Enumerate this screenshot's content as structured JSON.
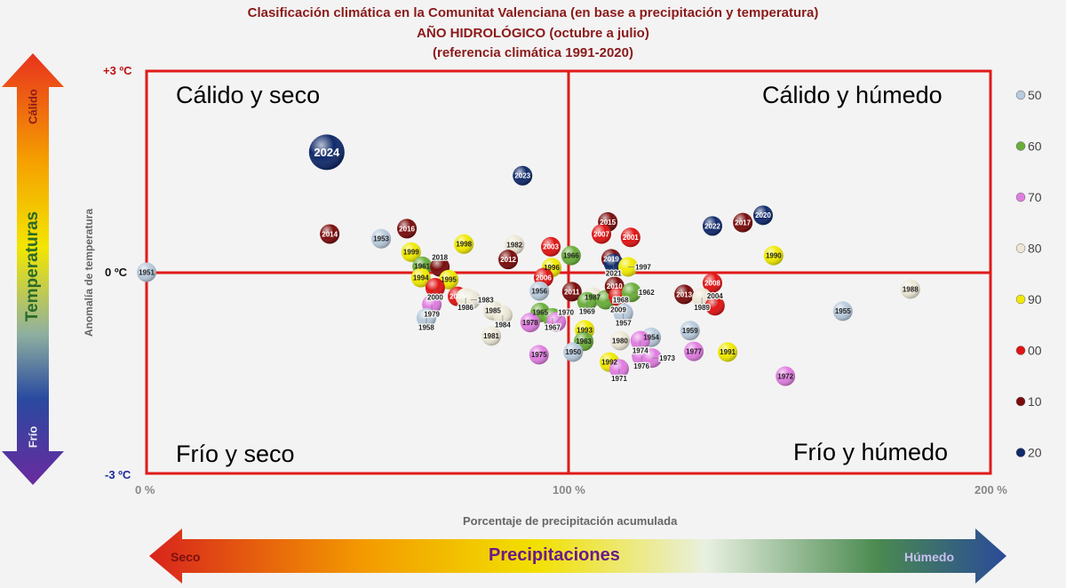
{
  "chart_data": {
    "type": "scatter",
    "title": [
      "Clasificación climática en la Comunitat Valenciana (en base a precipitación y temperatura)",
      "AÑO HIDROLÓGICO (octubre a julio)",
      "(referencia climática 1991-2020)"
    ],
    "xlabel": "Porcentaje de precipitación acumulada",
    "ylabel": "Anomalía de temperatura",
    "xlim": [
      0,
      200
    ],
    "ylim": [
      -3,
      3
    ],
    "x_ticks": [
      "0 %",
      "100 %",
      "200 %"
    ],
    "y_ticks": [
      "+3 ºC",
      "0 ºC",
      "-3 ºC"
    ],
    "quadrants": {
      "top_left": "Cálido y seco",
      "top_right": "Cálido y húmedo",
      "bottom_left": "Frío y seco",
      "bottom_right": "Frío y húmedo"
    },
    "quadrant_colors": {
      "top_left": "#d01818",
      "top_right": "#8cb21e",
      "bottom_left": "#7a1010",
      "bottom_right": "#20a98a"
    },
    "legend": [
      {
        "label": "50",
        "color": "#b8cadc"
      },
      {
        "label": "60",
        "color": "#6aae3a"
      },
      {
        "label": "70",
        "color": "#e07de0"
      },
      {
        "label": "80",
        "color": "#ece7d6"
      },
      {
        "label": "90",
        "color": "#f0ea00"
      },
      {
        "label": "00",
        "color": "#e01414"
      },
      {
        "label": "10",
        "color": "#7a0c0c"
      },
      {
        "label": "20",
        "color": "#102a6a"
      }
    ],
    "points": [
      {
        "year": "2024",
        "x": 42.7,
        "y": 1.79,
        "decade": "20",
        "highlight": true
      },
      {
        "year": "2023",
        "x": 89.1,
        "y": 1.44,
        "decade": "20"
      },
      {
        "year": "2014",
        "x": 43.4,
        "y": 0.57,
        "decade": "10"
      },
      {
        "year": "1953",
        "x": 55.6,
        "y": 0.5,
        "decade": "50"
      },
      {
        "year": "2016",
        "x": 61.7,
        "y": 0.65,
        "decade": "10"
      },
      {
        "year": "1999",
        "x": 62.7,
        "y": 0.3,
        "decade": "90"
      },
      {
        "year": "1998",
        "x": 75.2,
        "y": 0.42,
        "decade": "90"
      },
      {
        "year": "1982",
        "x": 87.2,
        "y": 0.41,
        "decade": "80"
      },
      {
        "year": "2012",
        "x": 85.7,
        "y": 0.19,
        "decade": "10"
      },
      {
        "year": "2003",
        "x": 95.8,
        "y": 0.38,
        "decade": "00"
      },
      {
        "year": "1966",
        "x": 100.6,
        "y": 0.25,
        "decade": "60"
      },
      {
        "year": "1996",
        "x": 96.0,
        "y": 0.07,
        "decade": "90"
      },
      {
        "year": "2006",
        "x": 94.1,
        "y": -0.08,
        "decade": "00"
      },
      {
        "year": "1961",
        "x": 65.3,
        "y": 0.09,
        "decade": "60"
      },
      {
        "year": "2018",
        "x": 69.5,
        "y": 0.08,
        "decade": "10"
      },
      {
        "year": "1994",
        "x": 65.0,
        "y": -0.08,
        "decade": "90"
      },
      {
        "year": "1995",
        "x": 71.6,
        "y": -0.11,
        "decade": "90"
      },
      {
        "year": "2000",
        "x": 68.4,
        "y": -0.23,
        "decade": "00"
      },
      {
        "year": "2005",
        "x": 73.7,
        "y": -0.36,
        "decade": "00"
      },
      {
        "year": "1986",
        "x": 75.6,
        "y": -0.38,
        "decade": "80"
      },
      {
        "year": "1983",
        "x": 76.8,
        "y": -0.41,
        "decade": "80"
      },
      {
        "year": "1979",
        "x": 67.6,
        "y": -0.48,
        "decade": "70"
      },
      {
        "year": "1958",
        "x": 66.3,
        "y": -0.68,
        "decade": "50"
      },
      {
        "year": "1985",
        "x": 82.1,
        "y": -0.57,
        "decade": "80"
      },
      {
        "year": "1984",
        "x": 84.4,
        "y": -0.64,
        "decade": "80"
      },
      {
        "year": "1981",
        "x": 81.7,
        "y": -0.95,
        "decade": "80"
      },
      {
        "year": "1956",
        "x": 93.1,
        "y": -0.28,
        "decade": "50"
      },
      {
        "year": "1965",
        "x": 93.3,
        "y": -0.6,
        "decade": "60"
      },
      {
        "year": "1967",
        "x": 96.2,
        "y": -0.68,
        "decade": "60"
      },
      {
        "year": "1970",
        "x": 97.1,
        "y": -0.74,
        "decade": "70"
      },
      {
        "year": "1978",
        "x": 90.9,
        "y": -0.75,
        "decade": "70"
      },
      {
        "year": "2011",
        "x": 100.8,
        "y": -0.29,
        "decade": "10"
      },
      {
        "year": "1987",
        "x": 105.7,
        "y": -0.37,
        "decade": "80"
      },
      {
        "year": "1969",
        "x": 104.4,
        "y": -0.44,
        "decade": "60"
      },
      {
        "year": "1968",
        "x": 108.8,
        "y": -0.41,
        "decade": "60"
      },
      {
        "year": "2010",
        "x": 110.9,
        "y": -0.21,
        "decade": "10"
      },
      {
        "year": "2009",
        "x": 111.8,
        "y": -0.36,
        "decade": "00"
      },
      {
        "year": "1962",
        "x": 114.9,
        "y": -0.3,
        "decade": "60"
      },
      {
        "year": "2019",
        "x": 110.1,
        "y": 0.2,
        "decade": "10"
      },
      {
        "year": "2021",
        "x": 110.7,
        "y": 0.13,
        "decade": "20"
      },
      {
        "year": "1997",
        "x": 114.1,
        "y": 0.08,
        "decade": "90"
      },
      {
        "year": "2015",
        "x": 109.3,
        "y": 0.75,
        "decade": "10"
      },
      {
        "year": "2007",
        "x": 107.8,
        "y": 0.57,
        "decade": "00"
      },
      {
        "year": "2001",
        "x": 114.7,
        "y": 0.52,
        "decade": "00"
      },
      {
        "year": "1957",
        "x": 113.0,
        "y": -0.61,
        "decade": "50"
      },
      {
        "year": "1993",
        "x": 103.8,
        "y": -0.86,
        "decade": "90"
      },
      {
        "year": "1963",
        "x": 103.6,
        "y": -1.03,
        "decade": "60"
      },
      {
        "year": "1950",
        "x": 101.1,
        "y": -1.19,
        "decade": "50"
      },
      {
        "year": "1975",
        "x": 93.0,
        "y": -1.23,
        "decade": "70"
      },
      {
        "year": "1980",
        "x": 112.2,
        "y": -1.02,
        "decade": "80"
      },
      {
        "year": "1954",
        "x": 119.6,
        "y": -0.97,
        "decade": "50"
      },
      {
        "year": "1974",
        "x": 117.0,
        "y": -1.02,
        "decade": "70"
      },
      {
        "year": "1976",
        "x": 117.3,
        "y": -1.25,
        "decade": "70"
      },
      {
        "year": "1973",
        "x": 119.8,
        "y": -1.28,
        "decade": "70"
      },
      {
        "year": "1992",
        "x": 109.7,
        "y": -1.34,
        "decade": "90"
      },
      {
        "year": "1971",
        "x": 112.0,
        "y": -1.44,
        "decade": "70"
      },
      {
        "year": "1959",
        "x": 128.8,
        "y": -0.87,
        "decade": "50"
      },
      {
        "year": "1977",
        "x": 129.7,
        "y": -1.18,
        "decade": "70"
      },
      {
        "year": "1991",
        "x": 137.7,
        "y": -1.19,
        "decade": "90"
      },
      {
        "year": "2022",
        "x": 134.1,
        "y": 0.69,
        "decade": "20"
      },
      {
        "year": "2017",
        "x": 141.3,
        "y": 0.74,
        "decade": "10"
      },
      {
        "year": "2020",
        "x": 146.1,
        "y": 0.85,
        "decade": "20"
      },
      {
        "year": "1990",
        "x": 148.6,
        "y": 0.25,
        "decade": "90"
      },
      {
        "year": "2008",
        "x": 134.1,
        "y": -0.16,
        "decade": "00"
      },
      {
        "year": "2013",
        "x": 127.4,
        "y": -0.33,
        "decade": "10"
      },
      {
        "year": "1989",
        "x": 131.6,
        "y": -0.38,
        "decade": "80"
      },
      {
        "year": "2004",
        "x": 134.7,
        "y": -0.5,
        "decade": "00"
      },
      {
        "year": "1988",
        "x": 181.0,
        "y": -0.25,
        "decade": "80"
      },
      {
        "year": "1955",
        "x": 165.0,
        "y": -0.58,
        "decade": "50"
      },
      {
        "year": "1972",
        "x": 151.4,
        "y": -1.55,
        "decade": "70"
      },
      {
        "year": "1951",
        "x": 0.0,
        "y": 0.0,
        "decade": "50"
      }
    ]
  },
  "side_arrow": {
    "label": "Temperaturas",
    "top": "Cálido",
    "bottom": "Frío"
  },
  "bottom_arrow": {
    "label": "Precipitaciones",
    "left": "Seco",
    "right": "Húmedo"
  }
}
